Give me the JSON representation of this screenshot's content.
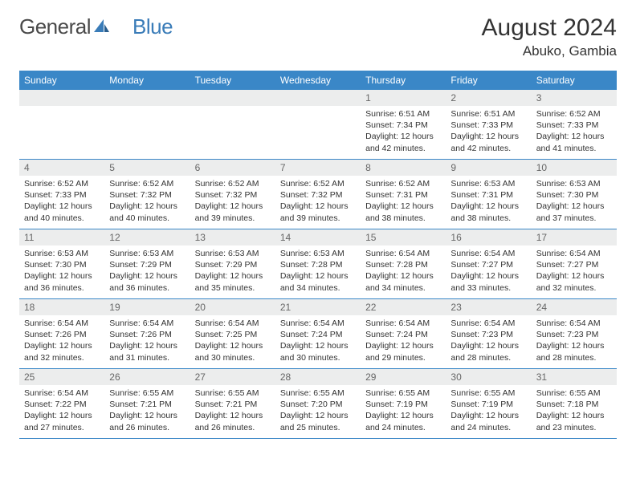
{
  "logo": {
    "text_gray": "General",
    "text_blue": "Blue"
  },
  "title": "August 2024",
  "location": "Abuko, Gambia",
  "day_headers": [
    "Sunday",
    "Monday",
    "Tuesday",
    "Wednesday",
    "Thursday",
    "Friday",
    "Saturday"
  ],
  "colors": {
    "header_bg": "#3a87c7",
    "header_text": "#ffffff",
    "daynum_bg": "#eceded",
    "daynum_text": "#666666",
    "cell_text": "#333333",
    "rule": "#3a87c7",
    "logo_gray": "#4a4a4a",
    "logo_blue": "#3a7cb8"
  },
  "weeks": [
    [
      null,
      null,
      null,
      null,
      {
        "n": "1",
        "sr": "6:51 AM",
        "ss": "7:34 PM",
        "dl": "12 hours and 42 minutes."
      },
      {
        "n": "2",
        "sr": "6:51 AM",
        "ss": "7:33 PM",
        "dl": "12 hours and 42 minutes."
      },
      {
        "n": "3",
        "sr": "6:52 AM",
        "ss": "7:33 PM",
        "dl": "12 hours and 41 minutes."
      }
    ],
    [
      {
        "n": "4",
        "sr": "6:52 AM",
        "ss": "7:33 PM",
        "dl": "12 hours and 40 minutes."
      },
      {
        "n": "5",
        "sr": "6:52 AM",
        "ss": "7:32 PM",
        "dl": "12 hours and 40 minutes."
      },
      {
        "n": "6",
        "sr": "6:52 AM",
        "ss": "7:32 PM",
        "dl": "12 hours and 39 minutes."
      },
      {
        "n": "7",
        "sr": "6:52 AM",
        "ss": "7:32 PM",
        "dl": "12 hours and 39 minutes."
      },
      {
        "n": "8",
        "sr": "6:52 AM",
        "ss": "7:31 PM",
        "dl": "12 hours and 38 minutes."
      },
      {
        "n": "9",
        "sr": "6:53 AM",
        "ss": "7:31 PM",
        "dl": "12 hours and 38 minutes."
      },
      {
        "n": "10",
        "sr": "6:53 AM",
        "ss": "7:30 PM",
        "dl": "12 hours and 37 minutes."
      }
    ],
    [
      {
        "n": "11",
        "sr": "6:53 AM",
        "ss": "7:30 PM",
        "dl": "12 hours and 36 minutes."
      },
      {
        "n": "12",
        "sr": "6:53 AM",
        "ss": "7:29 PM",
        "dl": "12 hours and 36 minutes."
      },
      {
        "n": "13",
        "sr": "6:53 AM",
        "ss": "7:29 PM",
        "dl": "12 hours and 35 minutes."
      },
      {
        "n": "14",
        "sr": "6:53 AM",
        "ss": "7:28 PM",
        "dl": "12 hours and 34 minutes."
      },
      {
        "n": "15",
        "sr": "6:54 AM",
        "ss": "7:28 PM",
        "dl": "12 hours and 34 minutes."
      },
      {
        "n": "16",
        "sr": "6:54 AM",
        "ss": "7:27 PM",
        "dl": "12 hours and 33 minutes."
      },
      {
        "n": "17",
        "sr": "6:54 AM",
        "ss": "7:27 PM",
        "dl": "12 hours and 32 minutes."
      }
    ],
    [
      {
        "n": "18",
        "sr": "6:54 AM",
        "ss": "7:26 PM",
        "dl": "12 hours and 32 minutes."
      },
      {
        "n": "19",
        "sr": "6:54 AM",
        "ss": "7:26 PM",
        "dl": "12 hours and 31 minutes."
      },
      {
        "n": "20",
        "sr": "6:54 AM",
        "ss": "7:25 PM",
        "dl": "12 hours and 30 minutes."
      },
      {
        "n": "21",
        "sr": "6:54 AM",
        "ss": "7:24 PM",
        "dl": "12 hours and 30 minutes."
      },
      {
        "n": "22",
        "sr": "6:54 AM",
        "ss": "7:24 PM",
        "dl": "12 hours and 29 minutes."
      },
      {
        "n": "23",
        "sr": "6:54 AM",
        "ss": "7:23 PM",
        "dl": "12 hours and 28 minutes."
      },
      {
        "n": "24",
        "sr": "6:54 AM",
        "ss": "7:23 PM",
        "dl": "12 hours and 28 minutes."
      }
    ],
    [
      {
        "n": "25",
        "sr": "6:54 AM",
        "ss": "7:22 PM",
        "dl": "12 hours and 27 minutes."
      },
      {
        "n": "26",
        "sr": "6:55 AM",
        "ss": "7:21 PM",
        "dl": "12 hours and 26 minutes."
      },
      {
        "n": "27",
        "sr": "6:55 AM",
        "ss": "7:21 PM",
        "dl": "12 hours and 26 minutes."
      },
      {
        "n": "28",
        "sr": "6:55 AM",
        "ss": "7:20 PM",
        "dl": "12 hours and 25 minutes."
      },
      {
        "n": "29",
        "sr": "6:55 AM",
        "ss": "7:19 PM",
        "dl": "12 hours and 24 minutes."
      },
      {
        "n": "30",
        "sr": "6:55 AM",
        "ss": "7:19 PM",
        "dl": "12 hours and 24 minutes."
      },
      {
        "n": "31",
        "sr": "6:55 AM",
        "ss": "7:18 PM",
        "dl": "12 hours and 23 minutes."
      }
    ]
  ],
  "labels": {
    "sunrise": "Sunrise:",
    "sunset": "Sunset:",
    "daylight": "Daylight:"
  }
}
